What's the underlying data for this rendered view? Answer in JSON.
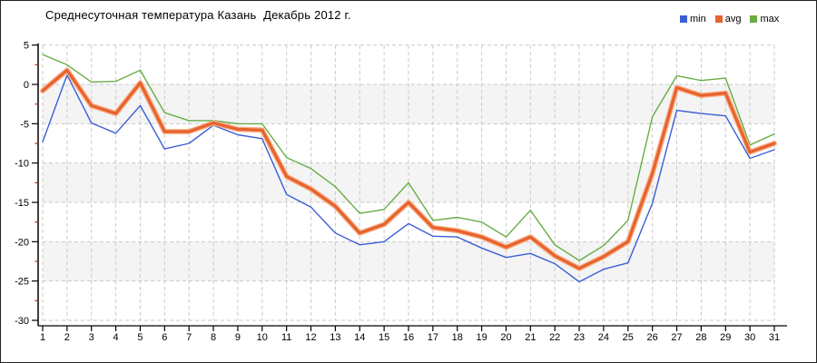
{
  "title": "Среднесуточная температура Казань  Декабрь 2012 г.",
  "legend": [
    {
      "label": "min",
      "color": "#3b5fd6"
    },
    {
      "label": "avg",
      "color": "#e8622d"
    },
    {
      "label": "max",
      "color": "#67ad44"
    }
  ],
  "chart_data": {
    "type": "line",
    "title": "Среднесуточная температура Казань  Декабрь 2012 г.",
    "xlabel": "",
    "ylabel": "",
    "x": [
      1,
      2,
      3,
      4,
      5,
      6,
      7,
      8,
      9,
      10,
      11,
      12,
      13,
      14,
      15,
      16,
      17,
      18,
      19,
      20,
      21,
      22,
      23,
      24,
      25,
      26,
      27,
      28,
      29,
      30,
      31
    ],
    "ylim": [
      -30,
      5
    ],
    "yticks": [
      5,
      0,
      -5,
      -10,
      -15,
      -20,
      -25,
      -30
    ],
    "yticks_minor": [
      2.5,
      -2.5,
      -7.5,
      -12.5,
      -17.5,
      -22.5,
      -27.5
    ],
    "grid": {
      "on": true,
      "color": "#c9c9c9",
      "dash": "4 3"
    },
    "bands": {
      "color": "#f4f4f4",
      "ranges": [
        [
          0,
          -5
        ],
        [
          -10,
          -15
        ],
        [
          -20,
          -25
        ]
      ]
    },
    "axis": {
      "color": "#000000",
      "minor_tick_color": "#cc2200",
      "tick_label_size": 11
    },
    "legend_position": "top-right",
    "series": [
      {
        "name": "min",
        "color": "#3b5fd6",
        "width": 1.4,
        "values": [
          -7.3,
          1.2,
          -4.9,
          -6.2,
          -2.7,
          -8.2,
          -7.5,
          -5.2,
          -6.4,
          -6.9,
          -14.0,
          -15.6,
          -18.9,
          -20.4,
          -20.0,
          -17.7,
          -19.3,
          -19.4,
          -20.8,
          -22.0,
          -21.5,
          -22.8,
          -25.1,
          -23.5,
          -22.7,
          -15.1,
          -3.3,
          -3.7,
          -4.0,
          -9.4,
          -8.3
        ]
      },
      {
        "name": "avg",
        "color": "#e8622d",
        "halo": "#f6b088",
        "width": 3.2,
        "values": [
          -0.8,
          1.8,
          -2.7,
          -3.7,
          0.2,
          -6.0,
          -6.0,
          -4.9,
          -5.7,
          -5.8,
          -11.7,
          -13.3,
          -15.5,
          -18.9,
          -17.8,
          -15.0,
          -18.2,
          -18.6,
          -19.4,
          -20.7,
          -19.4,
          -21.8,
          -23.4,
          -21.9,
          -20.0,
          -11.3,
          -0.4,
          -1.4,
          -1.1,
          -8.6,
          -7.5
        ]
      },
      {
        "name": "max",
        "color": "#67ad44",
        "width": 1.4,
        "values": [
          3.8,
          2.5,
          0.3,
          0.4,
          1.8,
          -3.6,
          -4.6,
          -4.6,
          -5.0,
          -5.0,
          -9.3,
          -10.7,
          -13.0,
          -16.4,
          -15.9,
          -12.5,
          -17.3,
          -16.9,
          -17.5,
          -19.4,
          -16.0,
          -20.4,
          -22.4,
          -20.5,
          -17.3,
          -4.1,
          1.1,
          0.5,
          0.8,
          -7.7,
          -6.3
        ]
      }
    ]
  }
}
